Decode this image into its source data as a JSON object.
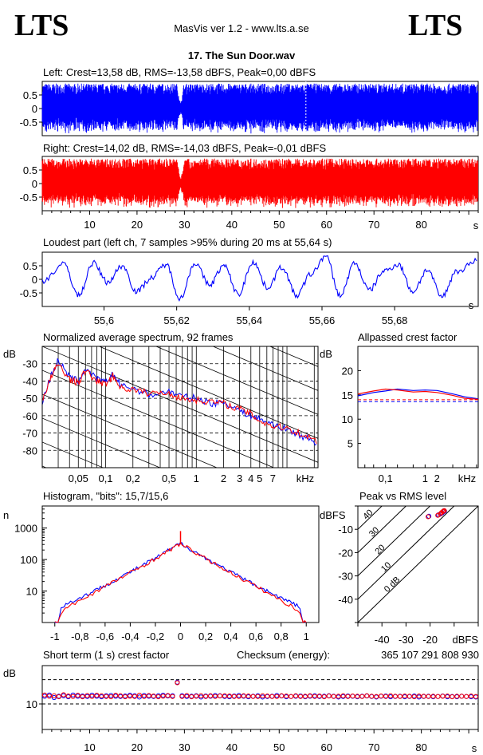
{
  "header": {
    "logo_left": "LTS",
    "logo_right": "LTS",
    "app_title": "MasVis ver 1.2 - www.lts.a.se",
    "file_title": "17. The Sun Door.wav"
  },
  "colors": {
    "left": "#0000ff",
    "right": "#ff0000",
    "grid": "#000000"
  },
  "chart_data": [
    {
      "id": "waveform_left",
      "type": "area",
      "title": "Left: Crest=13,58 dB, RMS=-13,58 dBFS, Peak=0,00 dBFS",
      "crest_db": 13.58,
      "rms_dbfs": -13.58,
      "peak_dbfs": 0.0,
      "ylim": [
        -1,
        1
      ],
      "ytick_labels": [
        "0.5",
        "0",
        "-0.5"
      ],
      "ytick_values": [
        0.5,
        0,
        -0.5
      ],
      "xlim": [
        0,
        92
      ],
      "envelope": [
        {
          "t": 0,
          "v": 0.92
        },
        {
          "t": 28.5,
          "v": 0.92
        },
        {
          "t": 29.2,
          "v": 0.15
        },
        {
          "t": 29.9,
          "v": 0.92
        },
        {
          "t": 92,
          "v": 0.92
        }
      ],
      "marker_s": 55.64
    },
    {
      "id": "waveform_right",
      "type": "area",
      "title": "Right: Crest=14,02 dB, RMS=-14,03 dBFS, Peak=-0,01 dBFS",
      "crest_db": 14.02,
      "rms_dbfs": -14.03,
      "peak_dbfs": -0.01,
      "ylim": [
        -1,
        1
      ],
      "ytick_labels": [
        "0.5",
        "0",
        "-0.5"
      ],
      "ytick_values": [
        0.5,
        0,
        -0.5
      ],
      "xlim": [
        0,
        92
      ],
      "xtick_values": [
        10,
        20,
        30,
        40,
        50,
        60,
        70,
        80
      ],
      "xtick_labels": [
        "10",
        "20",
        "30",
        "40",
        "50",
        "60",
        "70",
        "80"
      ],
      "xunit": "s",
      "envelope": [
        {
          "t": 0,
          "v": 0.92
        },
        {
          "t": 28.5,
          "v": 0.92
        },
        {
          "t": 29.2,
          "v": 0.15
        },
        {
          "t": 29.9,
          "v": 0.92
        },
        {
          "t": 92,
          "v": 0.92
        }
      ]
    },
    {
      "id": "loudest_part",
      "type": "line",
      "title": "Loudest part (left  ch, 7 samples >95% during 20 ms at 55,64 s)",
      "xlim": [
        55.583,
        55.703
      ],
      "ylim": [
        -1,
        1
      ],
      "ytick_labels": [
        "0.5",
        "0",
        "-0.5"
      ],
      "ytick_values": [
        0.5,
        0,
        -0.5
      ],
      "xtick_values": [
        55.6,
        55.62,
        55.64,
        55.66,
        55.68
      ],
      "xtick_labels": [
        "55,6",
        "55,62",
        "55,64",
        "55,66",
        "55,68"
      ],
      "xunit": "s",
      "series": [
        {
          "x": [
            55.583,
            55.589,
            55.593,
            55.597,
            55.601,
            55.605,
            55.609,
            55.613,
            55.617,
            55.621,
            55.625,
            55.629,
            55.633,
            55.637,
            55.641,
            55.645,
            55.649,
            55.653,
            55.657,
            55.661,
            55.665,
            55.669,
            55.673,
            55.677,
            55.681,
            55.685,
            55.689,
            55.693,
            55.697,
            55.703
          ],
          "y": [
            -0.05,
            0.55,
            -0.6,
            0.6,
            -0.1,
            0.5,
            -0.45,
            0.05,
            0.55,
            -0.7,
            0.6,
            -0.2,
            0.5,
            -0.55,
            0.65,
            -0.3,
            0.45,
            -0.6,
            0.2,
            0.85,
            -0.6,
            0.6,
            -0.4,
            0.3,
            0.55,
            -0.45,
            0.35,
            -0.65,
            0.3,
            0.7
          ]
        }
      ]
    },
    {
      "id": "average_spectrum",
      "type": "line",
      "title": "Normalized average spectrum, 92 frames",
      "ylabel": "dB",
      "ylim": [
        -90,
        -20
      ],
      "ytick_values": [
        -30,
        -40,
        -50,
        -60,
        -70,
        -80
      ],
      "ytick_labels": [
        "-30",
        "-40",
        "-50",
        "-60",
        "-70",
        "-80"
      ],
      "xscale": "log",
      "xlim_khz": [
        0.02,
        22
      ],
      "xtick_values": [
        0.05,
        0.1,
        0.2,
        0.5,
        1,
        2,
        3,
        4,
        5,
        7
      ],
      "xtick_labels": [
        "0,05",
        "0,1",
        "0,2",
        "0,5",
        "1",
        "2",
        "3",
        "4",
        "5",
        "7"
      ],
      "xunit": "kHz",
      "series": [
        {
          "name": "left",
          "x": [
            0.02,
            0.025,
            0.03,
            0.04,
            0.05,
            0.06,
            0.08,
            0.1,
            0.12,
            0.15,
            0.2,
            0.3,
            0.5,
            0.7,
            1,
            1.5,
            2,
            3,
            4,
            5,
            7,
            10,
            15,
            22
          ],
          "y": [
            -52,
            -37,
            -28,
            -38,
            -40,
            -33,
            -39,
            -41,
            -36,
            -43,
            -44,
            -48,
            -46,
            -49,
            -50,
            -53,
            -52,
            -57,
            -60,
            -62,
            -65,
            -68,
            -72,
            -76
          ]
        },
        {
          "name": "right",
          "x": [
            0.02,
            0.025,
            0.03,
            0.04,
            0.05,
            0.06,
            0.08,
            0.1,
            0.12,
            0.15,
            0.2,
            0.3,
            0.5,
            0.7,
            1,
            1.5,
            2,
            3,
            4,
            5,
            7,
            10,
            15,
            22
          ],
          "y": [
            -51,
            -38,
            -30,
            -39,
            -41,
            -34,
            -40,
            -42,
            -37,
            -44,
            -45,
            -47,
            -47,
            -50,
            -51,
            -52,
            -53,
            -56,
            -59,
            -63,
            -66,
            -67,
            -71,
            -75
          ]
        }
      ]
    },
    {
      "id": "allpassed_crest",
      "type": "line",
      "title": "Allpassed crest factor",
      "ylabel": "dB",
      "ylim": [
        0,
        25
      ],
      "ytick_values": [
        20,
        15,
        10,
        5
      ],
      "ytick_labels": [
        "20",
        "15",
        "10",
        "5"
      ],
      "xscale": "log",
      "xlim_khz": [
        0.02,
        22
      ],
      "xtick_values": [
        0.1,
        1,
        2
      ],
      "xtick_labels": [
        "0,1",
        "1",
        "2"
      ],
      "xunit": "kHz",
      "reference_lines": [
        14.0,
        13.6
      ],
      "series": [
        {
          "name": "left",
          "x": [
            0.02,
            0.05,
            0.1,
            0.2,
            0.5,
            1,
            2,
            5,
            10,
            22
          ],
          "y": [
            14.8,
            15.5,
            15.8,
            16.2,
            15.9,
            16.0,
            15.9,
            15.2,
            14.6,
            14.2
          ]
        },
        {
          "name": "right",
          "x": [
            0.02,
            0.05,
            0.1,
            0.2,
            0.5,
            1,
            2,
            5,
            10,
            22
          ],
          "y": [
            15.2,
            15.8,
            16.2,
            16.0,
            15.6,
            15.7,
            15.5,
            14.9,
            14.3,
            14.1
          ]
        }
      ]
    },
    {
      "id": "histogram",
      "type": "line",
      "title": "Histogram, \"bits\": 15,7/15,6",
      "ylabel": "n",
      "yscale": "log",
      "ylim": [
        1,
        5000
      ],
      "ytick_values": [
        10,
        100,
        1000
      ],
      "ytick_labels": [
        "10",
        "100",
        "1000"
      ],
      "xlim": [
        -1.1,
        1.1
      ],
      "xtick_values": [
        -1,
        -0.8,
        -0.6,
        -0.4,
        -0.2,
        0,
        0.2,
        0.4,
        0.6,
        0.8,
        1
      ],
      "xtick_labels": [
        "-1",
        "-0,8",
        "-0,6",
        "-0,4",
        "-0,2",
        "0",
        "0,2",
        "0,4",
        "0,6",
        "0,8",
        "1"
      ],
      "series": [
        {
          "name": "left",
          "x": [
            -1,
            -0.97,
            -0.95,
            -0.9,
            -0.8,
            -0.6,
            -0.4,
            -0.2,
            0,
            0.2,
            0.4,
            0.6,
            0.8,
            0.9,
            0.95,
            0.97,
            1
          ],
          "y": [
            1,
            1,
            3,
            4,
            6,
            15,
            40,
            110,
            330,
            110,
            40,
            15,
            6,
            4,
            3,
            1,
            1
          ]
        },
        {
          "name": "right",
          "x": [
            -1,
            -0.97,
            -0.95,
            -0.9,
            -0.8,
            -0.6,
            -0.4,
            -0.2,
            0,
            0.2,
            0.4,
            0.6,
            0.8,
            0.9,
            0.95,
            0.97,
            1
          ],
          "y": [
            1,
            1,
            2,
            3,
            5,
            14,
            38,
            105,
            320,
            105,
            38,
            14,
            5,
            3,
            2,
            1,
            1
          ]
        }
      ],
      "peak_spike": {
        "x": 0,
        "y": 800
      }
    },
    {
      "id": "peak_vs_rms",
      "type": "scatter",
      "title": "Peak vs RMS level",
      "ylabel": "dBFS",
      "xlabel": "dBFS",
      "xlim": [
        -50,
        0
      ],
      "ylim": [
        -50,
        0
      ],
      "xtick_values": [
        -40,
        -30,
        -20
      ],
      "xtick_labels": [
        "-40",
        "-30",
        "-20"
      ],
      "ytick_values": [
        -10,
        -20,
        -30,
        -40
      ],
      "ytick_labels": [
        "-10",
        "-20",
        "-30",
        "-40"
      ],
      "crest_lines": [
        40,
        30,
        20,
        10,
        0
      ],
      "crest_labels": [
        "40",
        "30",
        "20",
        "10",
        "0 dB"
      ],
      "series": [
        {
          "name": "left",
          "x": [
            -15,
            -14.5,
            -14,
            -15.5,
            -16.5,
            -20.5,
            -14.2
          ],
          "y": [
            -3,
            -2.5,
            -2.2,
            -3.2,
            -3.8,
            -4.4,
            -2.0
          ]
        },
        {
          "name": "right",
          "x": [
            -15.2,
            -14.7,
            -14.1,
            -15.8,
            -16.8,
            -20.8,
            -14.4
          ],
          "y": [
            -2.8,
            -2.4,
            -2.0,
            -3.5,
            -4.0,
            -4.6,
            -2.2
          ]
        }
      ]
    },
    {
      "id": "short_term_crest",
      "type": "scatter",
      "title": "Short term (1 s) crest factor",
      "checksum_label": "Checksum (energy):",
      "checksum_value": "365 107 291 808 930",
      "ylabel": "dB",
      "ylim": [
        0,
        25
      ],
      "ytick_values": [
        10
      ],
      "ytick_labels": [
        "10"
      ],
      "reference_lines": [
        19.5,
        10
      ],
      "xlim": [
        0,
        92
      ],
      "xtick_values": [
        10,
        20,
        30,
        40,
        50,
        60,
        70,
        80
      ],
      "xtick_labels": [
        "10",
        "20",
        "30",
        "40",
        "50",
        "60",
        "70",
        "80"
      ],
      "xunit": "s",
      "series": [
        {
          "name": "left",
          "y": [
            13,
            13.5,
            12.5,
            13,
            13.2,
            12.8,
            13.5,
            13,
            13.1,
            12.9,
            13.4,
            13,
            12.8,
            13.2,
            13.3,
            13,
            12.9,
            13.1,
            13.4,
            13.2,
            12.7,
            13.3,
            13,
            12.9,
            13.2,
            13.4,
            13.1,
            13.2,
            18.5,
            13.2,
            12.9,
            13,
            13.2,
            12.7,
            13.1,
            13,
            13.3,
            13.2,
            12.9,
            12.8,
            13.1,
            13.3,
            13,
            12.8,
            13,
            13.2,
            12.7,
            12.9,
            13,
            13.3,
            13.1,
            12.8,
            12.9,
            13,
            13.1,
            12.8,
            13,
            13.2,
            12.9,
            13,
            13.2,
            13,
            12.7,
            12.9,
            13.1,
            13,
            12.8,
            13,
            13.1,
            12.9,
            12.7,
            13,
            13.1,
            12.8,
            12.9,
            13,
            12.8,
            12.9,
            13.1,
            12.7,
            12.9,
            13,
            12.8,
            12.9,
            13.1,
            12.8,
            12.9,
            12.8,
            13,
            12.9,
            12.8,
            12.7
          ]
        },
        {
          "name": "right",
          "y": [
            13.5,
            13,
            13.2,
            12.8,
            13.6,
            13.1,
            12.9,
            13.4,
            12.8,
            13.3,
            12.9,
            13.4,
            13.2,
            12.9,
            12.8,
            13.4,
            13.2,
            12.8,
            13,
            12.9,
            13.4,
            12.9,
            13.3,
            13.1,
            12.8,
            13,
            13.3,
            12.9,
            18.3,
            12.9,
            13.3,
            12.8,
            13,
            13.2,
            12.9,
            13.2,
            12.9,
            13.1,
            13.2,
            13.1,
            12.9,
            12.9,
            13.2,
            13.1,
            12.9,
            12.9,
            13.2,
            13.1,
            12.9,
            12.9,
            13.2,
            13.1,
            12.9,
            13.2,
            12.9,
            13,
            13.2,
            12.9,
            13.1,
            12.8,
            13.1,
            12.9,
            13,
            13.2,
            12.9,
            13.1,
            13,
            12.9,
            13.2,
            13,
            12.9,
            13.1,
            12.9,
            13.2,
            13,
            12.9,
            13.1,
            13,
            12.8,
            13.1,
            13,
            12.9,
            13,
            12.9,
            13,
            13.1,
            12.8,
            13,
            13,
            12.9,
            13.1,
            12.9
          ]
        }
      ]
    }
  ]
}
